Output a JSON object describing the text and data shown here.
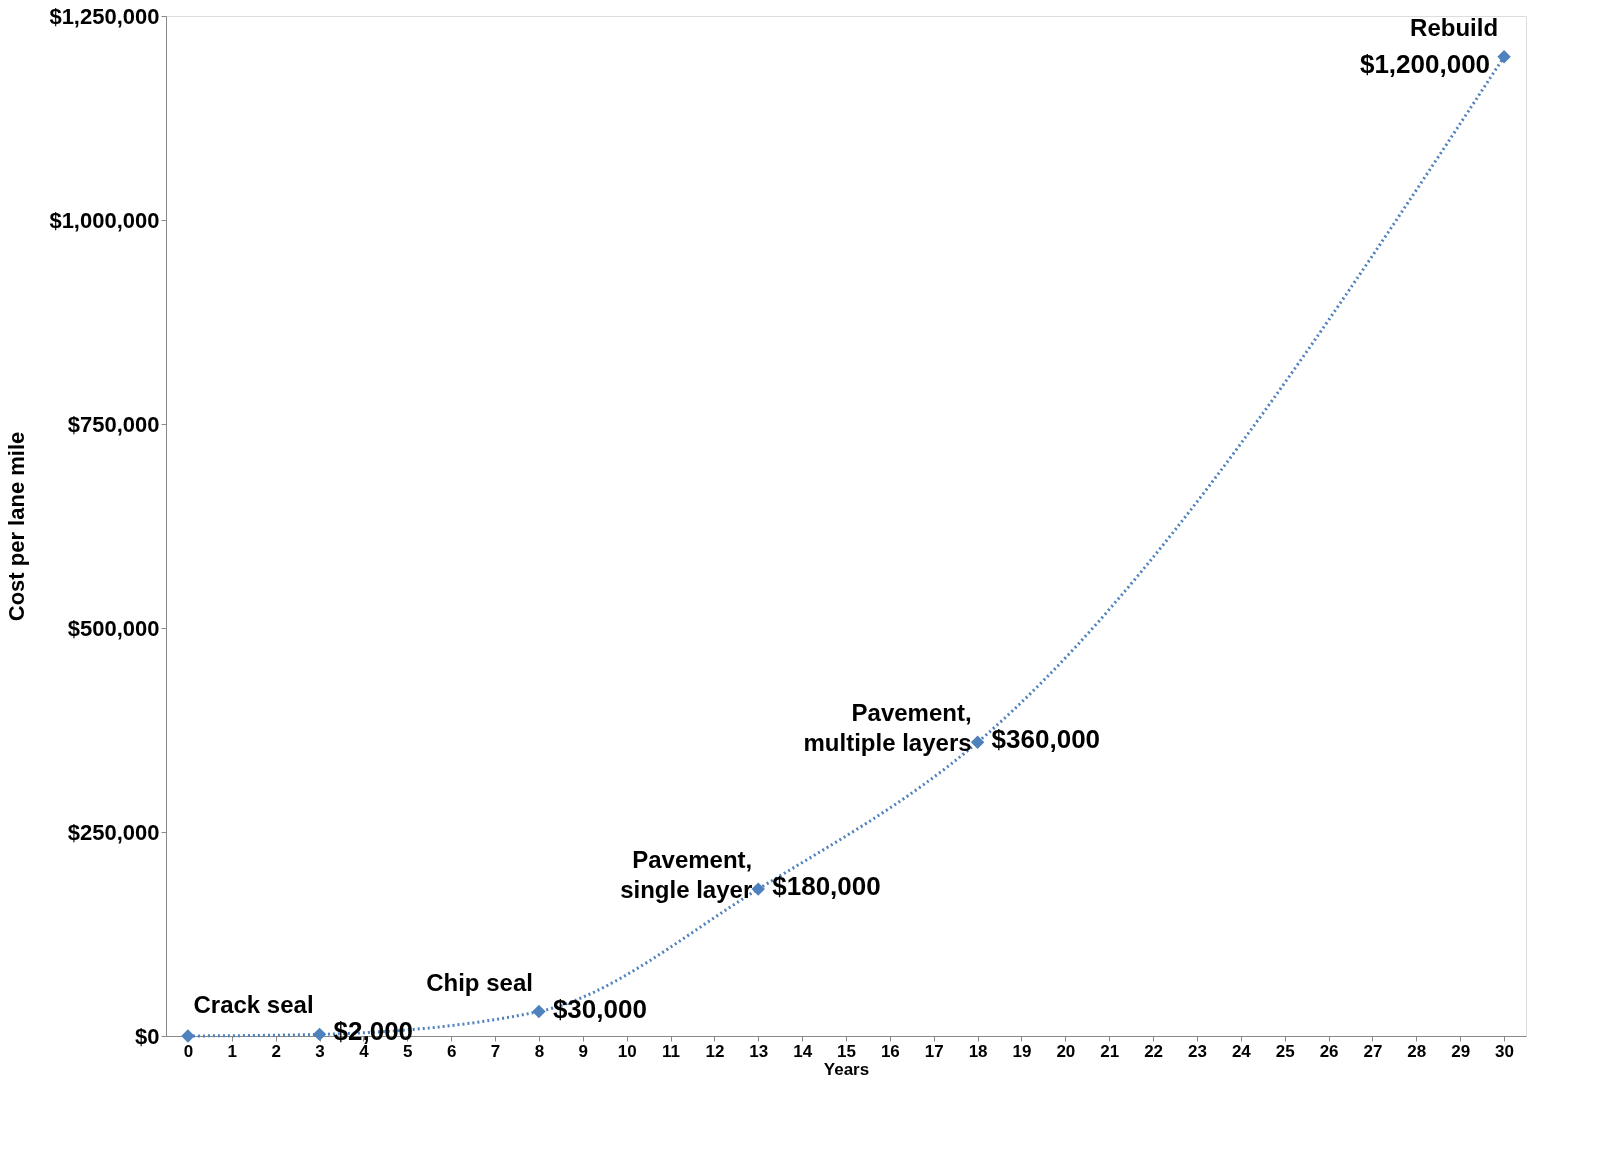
{
  "chart_data": {
    "type": "line",
    "xlabel": "Years",
    "ylabel": "Cost per lane mile",
    "x": [
      0,
      3,
      8,
      13,
      18,
      30
    ],
    "values": [
      0,
      2000,
      30000,
      180000,
      360000,
      1200000
    ],
    "value_labels": [
      null,
      "$2,000",
      "$30,000",
      "$180,000",
      "$360,000",
      "$1,200,000"
    ],
    "color": "#4f81bd",
    "marker": "diamond",
    "line_style": "dotted",
    "grid": false,
    "xlim": [
      -0.5,
      30.5
    ],
    "xticks": [
      0,
      1,
      2,
      3,
      4,
      5,
      6,
      7,
      8,
      9,
      10,
      11,
      12,
      13,
      14,
      15,
      16,
      17,
      18,
      19,
      20,
      21,
      22,
      23,
      24,
      25,
      26,
      27,
      28,
      29,
      30
    ],
    "ylim": [
      0,
      1250000
    ],
    "yticks": [
      {
        "value": 0,
        "label": "$0"
      },
      {
        "value": 250000,
        "label": "$250,000"
      },
      {
        "value": 500000,
        "label": "$500,000"
      },
      {
        "value": 750000,
        "label": "$750,000"
      },
      {
        "value": 1000000,
        "label": "$1,000,000"
      },
      {
        "value": 1250000,
        "label": "$1,250,000"
      }
    ],
    "annotations": [
      {
        "text": "Crack seal",
        "x": 3,
        "y": 2000
      },
      {
        "text": "Chip seal",
        "x": 8,
        "y": 30000
      },
      {
        "text": "Pavement,\nsingle layer",
        "x": 13,
        "y": 180000
      },
      {
        "text": "Pavement,\nmultiple layers",
        "x": 18,
        "y": 360000
      },
      {
        "text": "Rebuild",
        "x": 30,
        "y": 1200000
      }
    ]
  }
}
